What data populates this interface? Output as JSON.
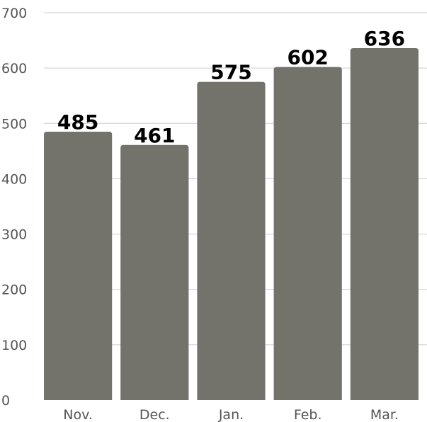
{
  "chart_data": {
    "type": "bar",
    "categories": [
      "Nov.",
      "Dec.",
      "Jan.",
      "Feb.",
      "Mar."
    ],
    "values": [
      485,
      461,
      575,
      602,
      636
    ],
    "data_labels": [
      "485",
      "461",
      "575",
      "602",
      "636"
    ],
    "title": "",
    "xlabel": "",
    "ylabel": "",
    "ylim": [
      0,
      700
    ],
    "yticks": [
      0,
      100,
      200,
      300,
      400,
      500,
      600,
      700
    ],
    "ytick_labels": [
      "0",
      "100",
      "200",
      "300",
      "400",
      "500",
      "600",
      "700"
    ],
    "grid": true,
    "legend": "none",
    "colors": {
      "bar": "#73736b",
      "grid": "#cccccc",
      "tick_text": "#555555",
      "data_label": "#000000"
    }
  }
}
